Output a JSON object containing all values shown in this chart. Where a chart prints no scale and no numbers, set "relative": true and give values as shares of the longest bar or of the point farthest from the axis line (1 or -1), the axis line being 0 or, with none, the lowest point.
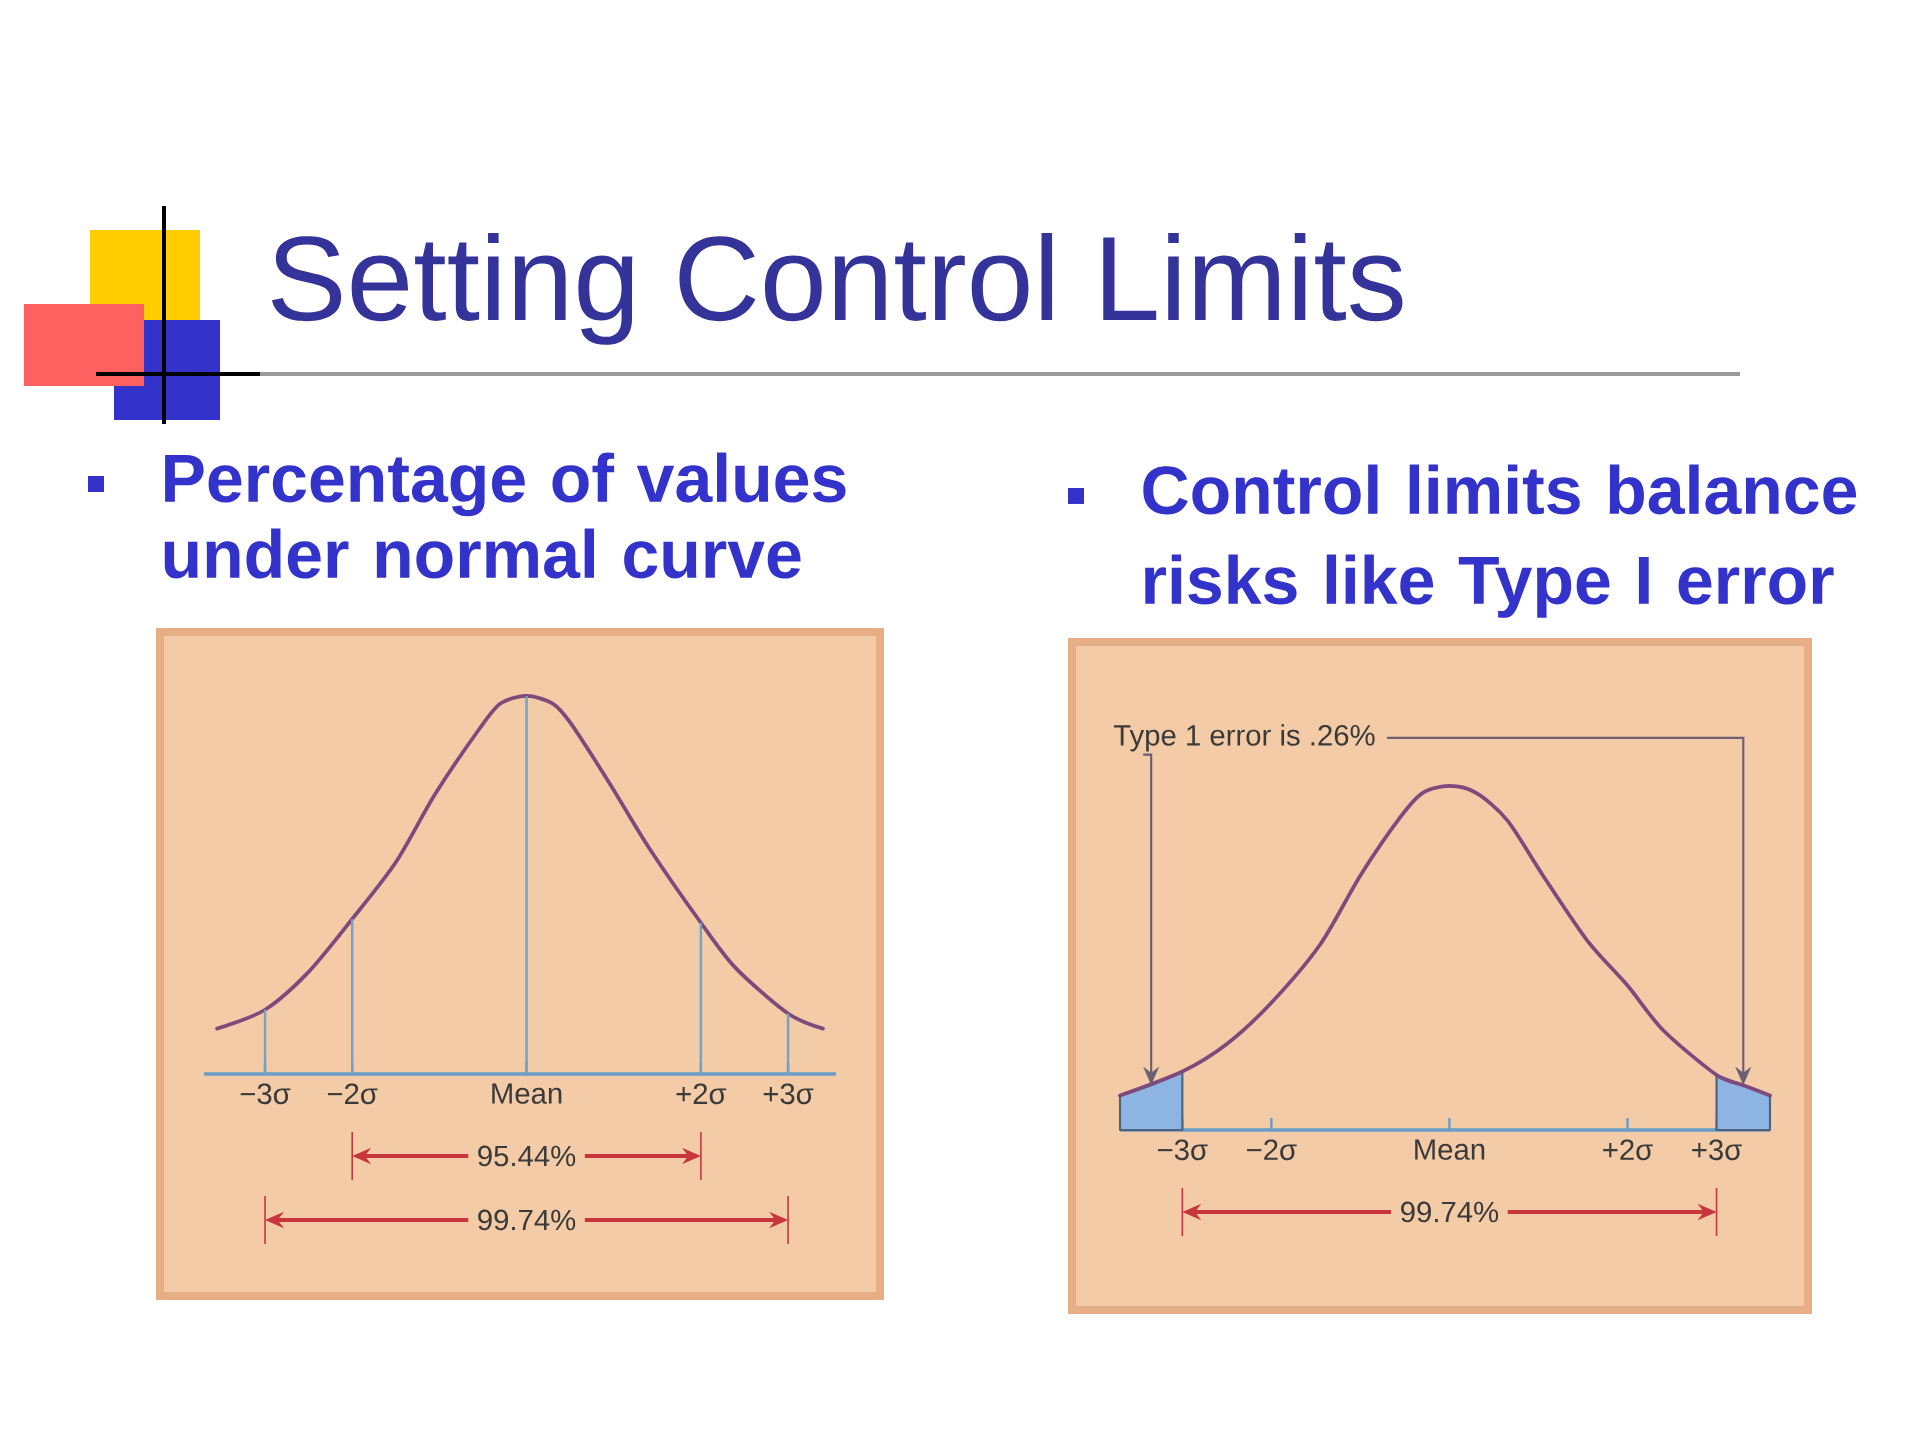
{
  "chart_data": [
    {
      "type": "line",
      "title": "Setting Control Limits",
      "subtitle": "Percentage of values under normal curve",
      "relative": true,
      "x": [
        -3.55,
        -3,
        -2.5,
        -2,
        -1.5,
        -1.05,
        -0.55,
        -0.3,
        0,
        0.3,
        0.5,
        0.95,
        1.4,
        2,
        2.4,
        3,
        3.4
      ],
      "series": [
        {
          "color": "#7E4A7C",
          "values": [
            0.12,
            0.17,
            0.27,
            0.41,
            0.56,
            0.74,
            0.91,
            0.98,
            1,
            0.98,
            0.93,
            0.77,
            0.6,
            0.4,
            0.28,
            0.16,
            0.12
          ]
        }
      ],
      "xlim": [
        -3.7,
        3.55
      ],
      "xticks": [
        {
          "value": -3,
          "label": "−3σ"
        },
        {
          "value": -2,
          "label": "−2σ"
        },
        {
          "value": 0,
          "label": "Mean"
        },
        {
          "value": 2,
          "label": "+2σ"
        },
        {
          "value": 3,
          "label": "+3σ"
        }
      ],
      "ref_lines": [
        {
          "axis": "x",
          "value": -3,
          "color": "#6FA3C8"
        },
        {
          "axis": "x",
          "value": -2,
          "color": "#6FA3C8"
        },
        {
          "axis": "x",
          "value": 0,
          "color": "#6FA3C8"
        },
        {
          "axis": "x",
          "value": 2,
          "color": "#6FA3C8"
        },
        {
          "axis": "x",
          "value": 3,
          "color": "#6FA3C8"
        }
      ],
      "annotations": [
        "95.44%",
        "99.74%"
      ]
    },
    {
      "type": "line",
      "subtitle": "Control limits balance risks like Type I error",
      "relative": true,
      "x": [
        -3.7,
        -3,
        -2.5,
        -2,
        -1.45,
        -1,
        -0.55,
        -0.3,
        0,
        0.3,
        0.65,
        1.05,
        1.55,
        2,
        2.4,
        3,
        3.3,
        3.6
      ],
      "series": [
        {
          "type": "area",
          "color": "#8DB4E2",
          "x": [
            -3.7,
            -3.35,
            -3
          ],
          "values": [
            0.1,
            0.13,
            0.17
          ]
        },
        {
          "type": "area",
          "color": "#8DB4E2",
          "x": [
            3,
            3.3,
            3.6
          ],
          "values": [
            0.16,
            0.13,
            0.1
          ]
        },
        {
          "color": "#7E4A7C",
          "values": [
            0.1,
            0.17,
            0.25,
            0.37,
            0.54,
            0.74,
            0.91,
            0.98,
            1,
            0.98,
            0.9,
            0.74,
            0.55,
            0.42,
            0.29,
            0.16,
            0.13,
            0.1
          ]
        }
      ],
      "xlim": [
        -3.7,
        3.6
      ],
      "xticks": [
        {
          "value": -3,
          "label": "−3σ"
        },
        {
          "value": -2,
          "label": "−2σ"
        },
        {
          "value": 0,
          "label": "Mean"
        },
        {
          "value": 2,
          "label": "+2σ"
        },
        {
          "value": 3,
          "label": "+3σ"
        }
      ],
      "annotations": [
        "Type 1 error is .26%",
        "99.74%"
      ]
    }
  ]
}
